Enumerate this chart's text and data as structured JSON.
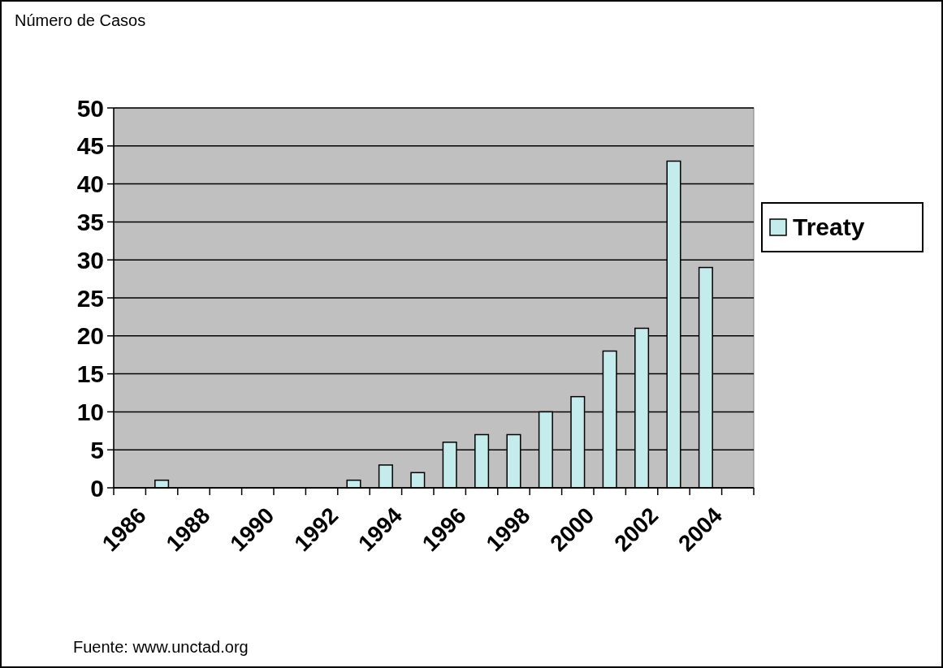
{
  "chart_data": {
    "type": "bar",
    "ylabel": "Número de  Casos",
    "categories": [
      "1986",
      null,
      "1988",
      null,
      "1990",
      null,
      "1992",
      null,
      "1994",
      null,
      "1996",
      null,
      "1998",
      null,
      "2000",
      null,
      "2002",
      null,
      "2004",
      null
    ],
    "series": [
      {
        "name": "Treaty",
        "color": "#c4ecec",
        "values": [
          null,
          1,
          null,
          null,
          null,
          null,
          null,
          1,
          3,
          2,
          6,
          7,
          7,
          10,
          12,
          18,
          21,
          43,
          29,
          null
        ]
      }
    ],
    "ylim": [
      0,
      50
    ],
    "yticks": [
      0,
      5,
      10,
      15,
      20,
      25,
      30,
      35,
      40,
      45,
      50
    ],
    "grid": "y",
    "legend": "right",
    "annotations": [
      "Fuente: www.unctad.org"
    ]
  }
}
